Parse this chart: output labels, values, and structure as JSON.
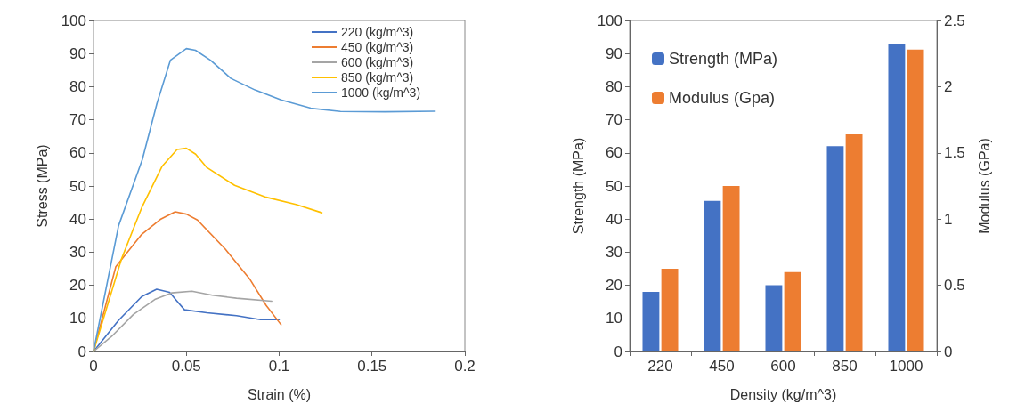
{
  "chart_data": [
    {
      "type": "line",
      "xlabel": "Strain (%)",
      "ylabel": "Stress (MPa)",
      "xlim": [
        0,
        0.2
      ],
      "xticks": [
        0,
        0.05,
        0.1,
        0.15,
        0.2
      ],
      "ylim": [
        0,
        100
      ],
      "yticks": [
        0,
        10,
        20,
        30,
        40,
        50,
        60,
        70,
        80,
        90,
        100
      ],
      "legend": "top right",
      "marker": "none",
      "line_style": "solid",
      "series": [
        {
          "name": "220 (kg/m^3)",
          "color": "#4472c4",
          "x": [
            0,
            0.0135,
            0.026,
            0.034,
            0.041,
            0.045,
            0.049,
            0.061,
            0.077,
            0.09,
            0.1
          ],
          "values": [
            0,
            9.4,
            16.6,
            18.8,
            17.9,
            15.2,
            12.6,
            11.7,
            10.8,
            9.6,
            9.6
          ]
        },
        {
          "name": "450 (kg/m^3)",
          "color": "#ed7d31",
          "x": [
            0,
            0.012,
            0.026,
            0.036,
            0.044,
            0.05,
            0.056,
            0.071,
            0.084,
            0.093,
            0.101
          ],
          "values": [
            0,
            25.6,
            35.4,
            39.9,
            42.2,
            41.5,
            39.7,
            30.9,
            22,
            13.9,
            8.1
          ]
        },
        {
          "name": "600 (kg/m^3)",
          "color": "#a5a5a5",
          "x": [
            0,
            0.0104,
            0.0215,
            0.033,
            0.042,
            0.053,
            0.064,
            0.077,
            0.096
          ],
          "values": [
            0,
            4.9,
            11.2,
            15.7,
            17.7,
            18.2,
            17,
            16.1,
            15.2
          ]
        },
        {
          "name": "850 (kg/m^3)",
          "color": "#ffc000",
          "x": [
            0,
            0.0151,
            0.026,
            0.037,
            0.045,
            0.05,
            0.055,
            0.061,
            0.076,
            0.093,
            0.109,
            0.123
          ],
          "values": [
            0,
            28,
            43.5,
            56,
            61,
            61.4,
            59.6,
            55.6,
            50.2,
            46.6,
            44.4,
            41.9
          ]
        },
        {
          "name": "1000 (kg/m^3)",
          "color": "#5b9bd5",
          "x": [
            0,
            0.0135,
            0.0263,
            0.0342,
            0.0414,
            0.05,
            0.0549,
            0.063,
            0.074,
            0.087,
            0.101,
            0.117,
            0.133,
            0.157,
            0.184
          ],
          "values": [
            0,
            38,
            58,
            75,
            88,
            91.5,
            91,
            88,
            82.5,
            79,
            76,
            73.5,
            72.5,
            72.4,
            72.6
          ]
        }
      ]
    },
    {
      "type": "bar",
      "xlabel": "Density (kg/m^3)",
      "ylabel": "Strength (MPa)",
      "y2label": "Modulus (GPa)",
      "categories": [
        "220",
        "450",
        "600",
        "850",
        "1000"
      ],
      "ylim": [
        0,
        100
      ],
      "yticks": [
        0,
        10,
        20,
        30,
        40,
        50,
        60,
        70,
        80,
        90,
        100
      ],
      "y2lim": [
        0,
        2.5
      ],
      "y2ticks": [
        0,
        0.5,
        1,
        1.5,
        2,
        2.5
      ],
      "legend": "top left",
      "series": [
        {
          "name": "Strength (MPa)",
          "color": "#4472c4",
          "values": [
            18,
            45.5,
            20,
            62,
            93
          ]
        },
        {
          "name": "Modulus (Gpa)",
          "color": "#ed7d31",
          "axis": "y2",
          "values": [
            0.625,
            1.25,
            0.6,
            1.64,
            2.28
          ]
        }
      ]
    }
  ]
}
